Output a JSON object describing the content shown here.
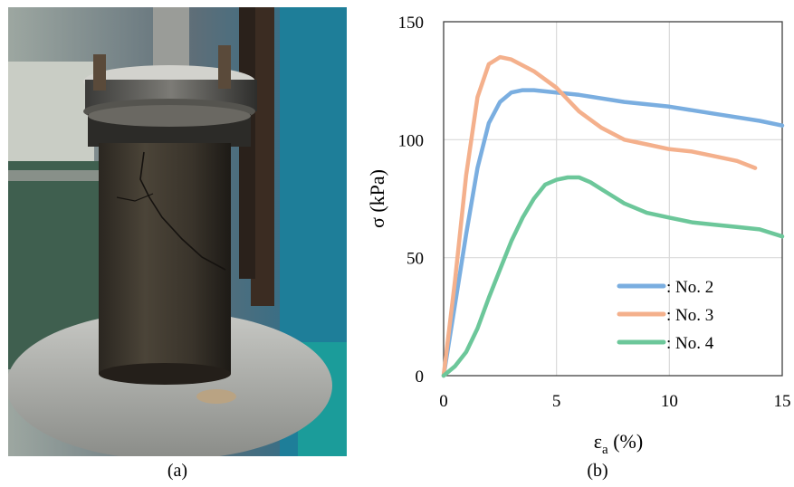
{
  "captions": {
    "a": "(a)",
    "b": "(b)"
  },
  "chart_data": {
    "type": "line",
    "xlabel_main": "ε",
    "xlabel_sub": "a",
    "xlabel_unit": " (%)",
    "ylabel": "σ (kPa)",
    "xlim": [
      0,
      15
    ],
    "ylim": [
      0,
      150
    ],
    "xticks": [
      0,
      5,
      10,
      15
    ],
    "yticks": [
      0,
      50,
      100,
      150
    ],
    "grid": true,
    "legend_position": "bottom-right",
    "series": [
      {
        "name": ": No. 2",
        "color": "#7aaee0",
        "x": [
          0,
          0.5,
          1.0,
          1.5,
          2.0,
          2.5,
          3.0,
          3.5,
          4.0,
          5.0,
          6.0,
          8.0,
          10.0,
          12.0,
          14.0,
          15.0
        ],
        "y": [
          0,
          30,
          60,
          88,
          107,
          116,
          120,
          121,
          121,
          120,
          119,
          116,
          114,
          111,
          108,
          106
        ]
      },
      {
        "name": ": No. 3",
        "color": "#f4b08c",
        "x": [
          0,
          0.5,
          1.0,
          1.5,
          2.0,
          2.5,
          3.0,
          4.0,
          5.0,
          6.0,
          7.0,
          8.0,
          9.0,
          10.0,
          11.0,
          12.0,
          13.0,
          13.8
        ],
        "y": [
          0,
          40,
          85,
          118,
          132,
          135,
          134,
          129,
          122,
          112,
          105,
          100,
          98,
          96,
          95,
          93,
          91,
          88
        ]
      },
      {
        "name": ": No. 4",
        "color": "#6cc79a",
        "x": [
          0,
          0.5,
          1.0,
          1.5,
          2.0,
          2.5,
          3.0,
          3.5,
          4.0,
          4.5,
          5.0,
          5.5,
          6.0,
          6.5,
          7.0,
          7.5,
          8.0,
          9.0,
          10.0,
          11.0,
          12.0,
          13.0,
          14.0,
          15.0
        ],
        "y": [
          0,
          4,
          10,
          20,
          33,
          45,
          57,
          67,
          75,
          81,
          83,
          84,
          84,
          82,
          79,
          76,
          73,
          69,
          67,
          65,
          64,
          63,
          62,
          59
        ]
      }
    ]
  }
}
